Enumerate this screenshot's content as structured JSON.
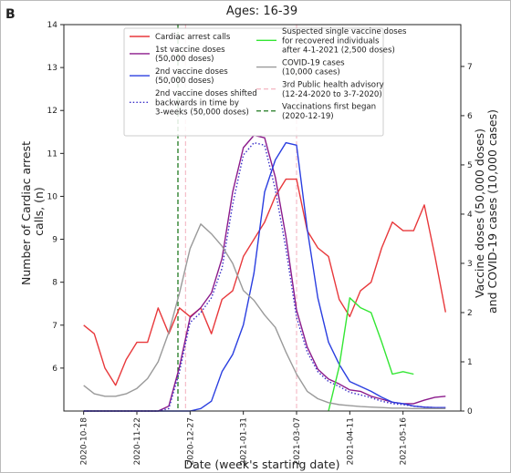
{
  "chart_data": {
    "type": "line",
    "panel_label": "B",
    "title": "Ages: 16-39",
    "xlabel": "Date (week's starting date)",
    "ylabel": "Number of Cardiac arrest\ncalls, (n)",
    "y2label": "Vaccine doses (50,000 doses)\nand COVID-19 cases (10,000 cases)",
    "x": [
      "2020-10-18",
      "2020-10-25",
      "2020-11-01",
      "2020-11-08",
      "2020-11-15",
      "2020-11-22",
      "2020-11-29",
      "2020-12-06",
      "2020-12-13",
      "2020-12-20",
      "2020-12-27",
      "2021-01-03",
      "2021-01-10",
      "2021-01-17",
      "2021-01-24",
      "2021-01-31",
      "2021-02-07",
      "2021-02-14",
      "2021-02-21",
      "2021-02-28",
      "2021-03-07",
      "2021-03-14",
      "2021-03-21",
      "2021-03-28",
      "2021-04-04",
      "2021-04-11",
      "2021-04-18",
      "2021-04-25",
      "2021-05-02",
      "2021-05-09",
      "2021-05-16",
      "2021-05-23",
      "2021-05-30",
      "2021-06-06",
      "2021-06-13"
    ],
    "xlim": [
      "2020-10-05",
      "2021-06-23"
    ],
    "xticks": [
      "2020-10-18",
      "2020-11-22",
      "2020-12-27",
      "2021-01-31",
      "2021-03-07",
      "2021-04-11",
      "2021-05-16"
    ],
    "ylim": [
      5,
      14
    ],
    "yticks": [
      6,
      7,
      8,
      9,
      10,
      11,
      12,
      13,
      14
    ],
    "y2lim": [
      0,
      7.85
    ],
    "y2ticks": [
      0,
      1,
      2,
      3,
      4,
      5,
      6,
      7
    ],
    "series": [
      {
        "name": "Cardiac arrest calls",
        "color": "#e8383b",
        "linestyle": "solid",
        "axis": "y",
        "values": [
          7.0,
          6.8,
          6.0,
          5.6,
          6.2,
          6.6,
          6.6,
          7.4,
          6.8,
          7.4,
          7.2,
          7.4,
          6.8,
          7.6,
          7.8,
          8.6,
          9.0,
          9.4,
          10.0,
          10.4,
          10.4,
          9.2,
          8.8,
          8.6,
          7.6,
          7.2,
          7.8,
          8.0,
          8.8,
          9.4,
          9.2,
          9.2,
          9.8,
          8.6,
          7.3
        ]
      },
      {
        "name": "1st vaccine doses\n(50,000 doses)",
        "color": "#8b1a8b",
        "linestyle": "solid",
        "axis": "y2",
        "values": [
          0,
          0,
          0,
          0,
          0,
          0,
          0,
          0,
          0.1,
          0.9,
          1.9,
          2.1,
          2.4,
          3.1,
          4.45,
          5.35,
          5.6,
          5.55,
          4.75,
          3.55,
          2.05,
          1.3,
          0.85,
          0.65,
          0.55,
          0.43,
          0.4,
          0.3,
          0.24,
          0.18,
          0.15,
          0.15,
          0.22,
          0.28,
          0.3
        ]
      },
      {
        "name": "2nd vaccine doses\n(50,000 doses)",
        "color": "#2a3ee0",
        "linestyle": "solid",
        "axis": "y2",
        "values": [
          0,
          0,
          0,
          0,
          0,
          0,
          0,
          0,
          0,
          0,
          0,
          0.05,
          0.2,
          0.8,
          1.15,
          1.75,
          2.8,
          4.45,
          5.1,
          5.45,
          5.4,
          3.7,
          2.3,
          1.4,
          0.95,
          0.6,
          0.5,
          0.4,
          0.28,
          0.18,
          0.15,
          0.1,
          0.08,
          0.07,
          0.07
        ]
      },
      {
        "name": "2nd vaccine doses shifted\nbackwards in time by\n3-weeks (50,000 doses)",
        "color": "#3a2fc8",
        "linestyle": "dotted",
        "axis": "y2",
        "values": [
          0,
          0,
          0,
          0,
          0,
          0,
          0,
          0,
          0.05,
          0.8,
          1.8,
          2.0,
          2.3,
          2.9,
          4.2,
          5.2,
          5.45,
          5.4,
          4.5,
          3.3,
          1.9,
          1.2,
          0.8,
          0.6,
          0.5,
          0.38,
          0.33,
          0.27,
          0.2,
          0.15,
          0.13,
          0.1,
          0.08,
          0.07,
          0.07
        ]
      },
      {
        "name": "Suspected single vaccine doses\nfor recovered individuals\nafter 4-1-2021 (2,500 doses)",
        "color": "#33e633",
        "linestyle": "solid",
        "axis": "y2",
        "values": [
          null,
          null,
          null,
          null,
          null,
          null,
          null,
          null,
          null,
          null,
          null,
          null,
          null,
          null,
          null,
          null,
          null,
          null,
          null,
          null,
          null,
          null,
          null,
          0,
          0.9,
          2.3,
          2.1,
          2.0,
          1.4,
          0.75,
          0.8,
          0.75,
          null,
          null,
          null
        ]
      },
      {
        "name": "COVID-19 cases\n(10,000 cases)",
        "color": "#9a9a9a",
        "linestyle": "solid",
        "axis": "y2",
        "values": [
          0.52,
          0.35,
          0.3,
          0.3,
          0.35,
          0.46,
          0.66,
          1.0,
          1.6,
          2.4,
          3.3,
          3.8,
          3.6,
          3.35,
          3.0,
          2.45,
          2.25,
          1.95,
          1.7,
          1.2,
          0.75,
          0.4,
          0.25,
          0.17,
          0.13,
          0.11,
          0.09,
          0.08,
          0.07,
          0.06,
          0.06,
          0.05,
          0.05,
          0.05,
          0.05
        ]
      }
    ],
    "vlines": [
      {
        "name": "3rd Public health advisory\n(12-24-2020 to 3-7-2020)",
        "color": "#f4b6c2",
        "x": [
          "2020-12-24",
          "2021-03-07"
        ]
      },
      {
        "name": "Vaccinations first began\n(2020-12-19)",
        "color": "#1f7a1f",
        "x": [
          "2020-12-19"
        ]
      }
    ]
  }
}
